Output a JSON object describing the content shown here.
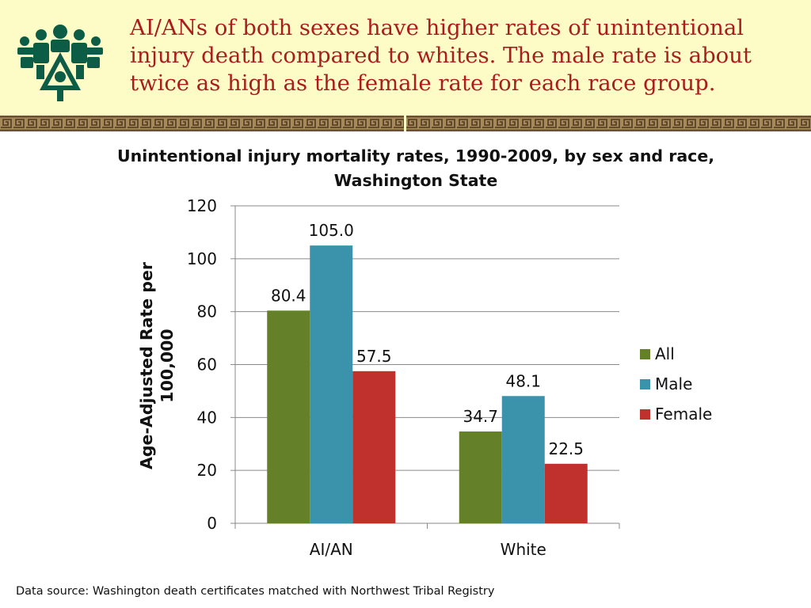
{
  "header": {
    "headline": "AI/ANs of both sexes have higher rates of unintentional injury death compared to whites. The male rate is about twice as high as the female rate for each race group."
  },
  "logo": {
    "icon": "tribal-figures-logo-icon",
    "color": "#0d5c46"
  },
  "footer": {
    "source": "Data source: Washington death certificates matched with Northwest Tribal Registry"
  },
  "chart_data": {
    "type": "bar",
    "title": "Unintentional injury mortality rates, 1990-2009, by sex and race, Washington State",
    "ylabel": "Age-Adjusted Rate per 100,000",
    "xlabel": "",
    "ylim": [
      0,
      120
    ],
    "yticks": [
      "0",
      "20",
      "40",
      "60",
      "80",
      "100",
      "120"
    ],
    "categories": [
      "AI/AN",
      "White"
    ],
    "series": [
      {
        "name": "All",
        "color": "#64812a",
        "values": [
          80.4,
          34.7
        ],
        "labels": [
          "80.4",
          "34.7"
        ]
      },
      {
        "name": "Male",
        "color": "#3a93ab",
        "values": [
          105.0,
          48.1
        ],
        "labels": [
          "105.0",
          "48.1"
        ]
      },
      {
        "name": "Female",
        "color": "#c0302d",
        "values": [
          57.5,
          22.5
        ],
        "labels": [
          "57.5",
          "22.5"
        ]
      }
    ],
    "grid": true,
    "legend": "right"
  }
}
